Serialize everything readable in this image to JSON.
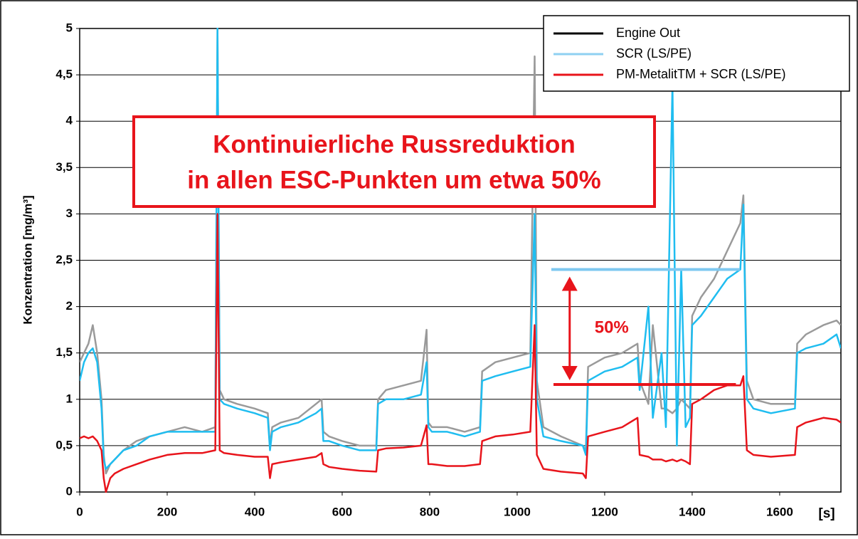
{
  "chart_data": {
    "type": "line",
    "ylabel": "Konzentration [mg/m³]",
    "xlabel": "[s]",
    "annotation": {
      "lines": [
        "Kontinuierliche Russreduktion",
        "in allen ESC-Punkten um etwa 50%"
      ],
      "color": "#e8141b"
    },
    "reference_lines": [
      {
        "value": 2.4,
        "x": [
          1078,
          1509
        ],
        "color": "#7ec8f0"
      },
      {
        "value": 1.16,
        "x": [
          1083,
          1500
        ],
        "color": "#e8141b"
      }
    ],
    "arrow": {
      "x": 1120,
      "y": [
        2.4,
        1.16
      ],
      "label": "50%",
      "color": "#e8141b"
    },
    "xlim": [
      0,
      1740
    ],
    "ylim": [
      0,
      5
    ],
    "xticks": [
      0,
      200,
      400,
      600,
      800,
      1000,
      1200,
      1400,
      1600
    ],
    "yticks": [
      0,
      {
        "value": 0.5,
        "label": "0,5"
      },
      1,
      {
        "value": 1.5,
        "label": "1,5"
      },
      2,
      {
        "value": 2.5,
        "label": "2,5"
      },
      3,
      {
        "value": 3.5,
        "label": "3,5"
      },
      4,
      {
        "value": 4.5,
        "label": "4,5"
      },
      5
    ],
    "grid": true,
    "legend": "top-right",
    "x": [
      0,
      10,
      20,
      30,
      40,
      50,
      55,
      60,
      70,
      80,
      100,
      130,
      160,
      200,
      240,
      280,
      310,
      315,
      320,
      330,
      360,
      400,
      430,
      435,
      440,
      460,
      500,
      540,
      553,
      557,
      570,
      600,
      640,
      678,
      682,
      700,
      740,
      780,
      793,
      797,
      805,
      840,
      880,
      915,
      920,
      950,
      990,
      1030,
      1040,
      1045,
      1060,
      1100,
      1150,
      1157,
      1162,
      1200,
      1240,
      1275,
      1280,
      1300,
      1310,
      1330,
      1340,
      1355,
      1365,
      1375,
      1385,
      1395,
      1400,
      1420,
      1450,
      1480,
      1510,
      1517,
      1525,
      1540,
      1580,
      1635,
      1640,
      1660,
      1700,
      1730,
      1740
    ],
    "series": [
      {
        "name": "Engine Out",
        "color": "#9a9a9a",
        "legend_color": "#000000",
        "values": [
          1.4,
          1.5,
          1.6,
          1.8,
          1.5,
          1.0,
          0.4,
          0.2,
          0.3,
          0.35,
          0.45,
          0.55,
          0.6,
          0.65,
          0.7,
          0.65,
          0.7,
          5,
          1.1,
          1.0,
          0.95,
          0.9,
          0.85,
          0.5,
          0.7,
          0.75,
          0.8,
          0.95,
          1.0,
          0.65,
          0.6,
          0.55,
          0.5,
          0.5,
          1.0,
          1.1,
          1.15,
          1.2,
          1.75,
          0.75,
          0.7,
          0.7,
          0.65,
          0.7,
          1.3,
          1.4,
          1.45,
          1.5,
          4.7,
          1.2,
          0.7,
          0.6,
          0.5,
          0.45,
          1.35,
          1.45,
          1.5,
          1.6,
          1.2,
          0.95,
          1.8,
          0.9,
          0.9,
          0.85,
          0.9,
          1.0,
          0.95,
          0.9,
          1.9,
          2.1,
          2.3,
          2.6,
          2.9,
          3.2,
          1.2,
          1.0,
          0.95,
          0.95,
          1.6,
          1.7,
          1.8,
          1.85,
          1.8
        ]
      },
      {
        "name": "SCR (LS/PE)",
        "color": "#1fbdf0",
        "legend_color": "#8fd0f2",
        "values": [
          1.2,
          1.4,
          1.5,
          1.55,
          1.4,
          0.9,
          0.35,
          0.25,
          0.3,
          0.35,
          0.45,
          0.5,
          0.6,
          0.65,
          0.65,
          0.65,
          0.65,
          5,
          1.0,
          0.95,
          0.9,
          0.85,
          0.8,
          0.45,
          0.65,
          0.7,
          0.75,
          0.85,
          0.9,
          0.55,
          0.55,
          0.5,
          0.45,
          0.45,
          0.95,
          1.0,
          1.0,
          1.05,
          1.4,
          0.7,
          0.65,
          0.65,
          0.6,
          0.65,
          1.2,
          1.25,
          1.3,
          1.35,
          3.0,
          1.0,
          0.6,
          0.55,
          0.5,
          0.4,
          1.2,
          1.3,
          1.35,
          1.45,
          1.1,
          2.0,
          0.8,
          1.5,
          0.7,
          4.4,
          0.5,
          2.4,
          0.7,
          0.8,
          1.8,
          1.9,
          2.1,
          2.3,
          2.4,
          3.1,
          1.0,
          0.9,
          0.85,
          0.9,
          1.5,
          1.55,
          1.6,
          1.7,
          1.55
        ]
      },
      {
        "name": "PM-MetalitTM + SCR (LS/PE)",
        "color": "#e8141b",
        "legend_color": "#e8141b",
        "values": [
          0.58,
          0.6,
          0.58,
          0.6,
          0.55,
          0.45,
          0.15,
          0,
          0.15,
          0.2,
          0.25,
          0.3,
          0.35,
          0.4,
          0.42,
          0.42,
          0.45,
          3.0,
          0.45,
          0.42,
          0.4,
          0.38,
          0.38,
          0.15,
          0.3,
          0.32,
          0.35,
          0.38,
          0.42,
          0.3,
          0.27,
          0.25,
          0.23,
          0.22,
          0.45,
          0.47,
          0.48,
          0.5,
          0.72,
          0.3,
          0.3,
          0.28,
          0.28,
          0.3,
          0.55,
          0.6,
          0.62,
          0.65,
          1.8,
          0.4,
          0.25,
          0.22,
          0.2,
          0.15,
          0.6,
          0.65,
          0.7,
          0.8,
          0.4,
          0.38,
          0.35,
          0.35,
          0.33,
          0.35,
          0.33,
          0.35,
          0.33,
          0.3,
          0.95,
          1.0,
          1.1,
          1.15,
          1.15,
          1.25,
          0.45,
          0.4,
          0.38,
          0.4,
          0.7,
          0.75,
          0.8,
          0.78,
          0.75
        ]
      }
    ]
  }
}
